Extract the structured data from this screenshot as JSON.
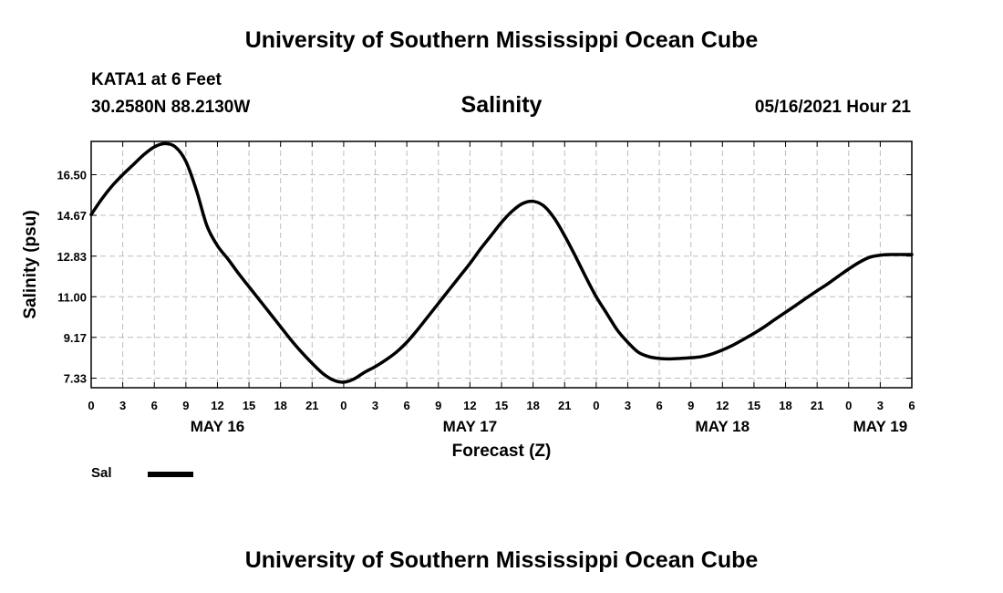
{
  "header": {
    "title_top": "University of Southern Mississippi Ocean Cube",
    "station": "KATA1 at 6 Feet",
    "coords": "30.2580N  88.2130W",
    "variable": "Salinity",
    "datetime": "05/16/2021 Hour 21"
  },
  "footer": {
    "title_bottom": "University of Southern Mississippi Ocean Cube"
  },
  "legend": {
    "label": "Sal",
    "color": "#000000"
  },
  "chart_data": {
    "type": "line",
    "title": "Salinity",
    "xlabel": "Forecast (Z)",
    "ylabel": "Salinity (psu)",
    "xlim": [
      0,
      78
    ],
    "ylim": [
      6.9,
      18.0
    ],
    "grid": true,
    "yticks": [
      7.33,
      9.17,
      11.0,
      12.83,
      14.67,
      16.5
    ],
    "ytick_labels": [
      "7.33",
      "9.17",
      "11.00",
      "12.83",
      "14.67",
      "16.50"
    ],
    "xticks": [
      0,
      3,
      6,
      9,
      12,
      15,
      18,
      21,
      24,
      27,
      30,
      33,
      36,
      39,
      42,
      45,
      48,
      51,
      54,
      57,
      60,
      63,
      66,
      69,
      72,
      75,
      78
    ],
    "xtick_labels": [
      "0",
      "3",
      "6",
      "9",
      "12",
      "15",
      "18",
      "21",
      "0",
      "3",
      "6",
      "9",
      "12",
      "15",
      "18",
      "21",
      "0",
      "3",
      "6",
      "9",
      "12",
      "15",
      "18",
      "21",
      "0",
      "3",
      "6"
    ],
    "day_labels": [
      {
        "label": "MAY 16",
        "x": 12
      },
      {
        "label": "MAY 17",
        "x": 36
      },
      {
        "label": "MAY 18",
        "x": 60
      },
      {
        "label": "MAY 19",
        "x": 75
      }
    ],
    "series": [
      {
        "name": "Sal",
        "color": "#000000",
        "x": [
          0,
          1,
          2,
          3,
          4,
          5,
          6,
          7,
          8,
          9,
          10,
          11,
          12,
          13,
          14,
          15,
          16,
          17,
          18,
          19,
          20,
          21,
          22,
          23,
          24,
          25,
          26,
          27,
          28,
          29,
          30,
          31,
          32,
          33,
          34,
          35,
          36,
          37,
          38,
          39,
          40,
          41,
          42,
          43,
          44,
          45,
          46,
          47,
          48,
          49,
          50,
          51,
          52,
          53,
          54,
          55,
          56,
          57,
          58,
          59,
          60,
          61,
          62,
          63,
          64,
          65,
          66,
          67,
          68,
          69,
          70,
          71,
          72,
          73,
          74,
          75,
          76,
          77,
          78
        ],
        "values": [
          14.7,
          15.4,
          16.0,
          16.5,
          16.95,
          17.4,
          17.75,
          17.9,
          17.75,
          17.1,
          15.8,
          14.2,
          13.3,
          12.7,
          12.05,
          11.45,
          10.85,
          10.25,
          9.65,
          9.05,
          8.5,
          8.0,
          7.55,
          7.25,
          7.15,
          7.3,
          7.6,
          7.85,
          8.15,
          8.5,
          8.95,
          9.5,
          10.1,
          10.7,
          11.3,
          11.9,
          12.5,
          13.15,
          13.75,
          14.35,
          14.85,
          15.2,
          15.3,
          15.1,
          14.55,
          13.75,
          12.85,
          11.9,
          11.0,
          10.25,
          9.5,
          8.95,
          8.5,
          8.3,
          8.22,
          8.2,
          8.22,
          8.25,
          8.3,
          8.42,
          8.6,
          8.82,
          9.08,
          9.35,
          9.65,
          9.98,
          10.3,
          10.62,
          10.95,
          11.27,
          11.58,
          11.92,
          12.25,
          12.55,
          12.78,
          12.87,
          12.9,
          12.9,
          12.9
        ]
      }
    ]
  }
}
